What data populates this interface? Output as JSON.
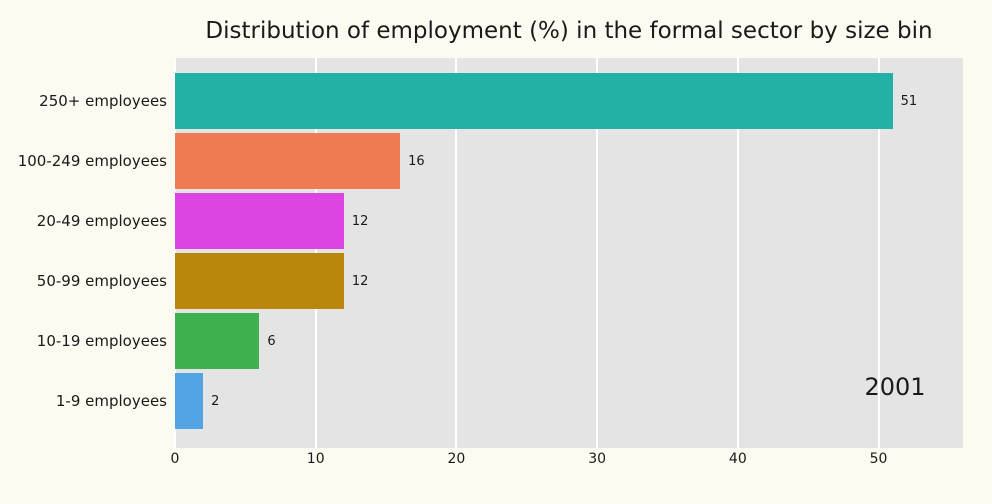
{
  "chart_data": {
    "type": "bar",
    "orientation": "horizontal",
    "title": "Distribution of employment (%) in the formal sector by size bin",
    "categories": [
      "250+ employees",
      "100-249 employees",
      "20-49 employees",
      "50-99 employees",
      "10-19 employees",
      "1-9 employees"
    ],
    "values": [
      51,
      16,
      12,
      12,
      6,
      2
    ],
    "value_labels": [
      "51",
      "16",
      "12",
      "12",
      "6",
      "2"
    ],
    "bar_colors": [
      "#23b1a5",
      "#ee7b51",
      "#dc45e0",
      "#b8860b",
      "#3eb04d",
      "#52a4e4"
    ],
    "annotation": "2001",
    "xticks": [
      0,
      10,
      20,
      30,
      40,
      50
    ],
    "xlim": [
      0,
      56
    ],
    "grid": true,
    "legend": "none",
    "xlabel": "",
    "ylabel": "",
    "colors": {
      "figure_bg": "#fbfbf2",
      "plot_bg": "#e4e4e4",
      "grid_color": "#ffffff",
      "text_color": "#1a1a1a"
    }
  }
}
